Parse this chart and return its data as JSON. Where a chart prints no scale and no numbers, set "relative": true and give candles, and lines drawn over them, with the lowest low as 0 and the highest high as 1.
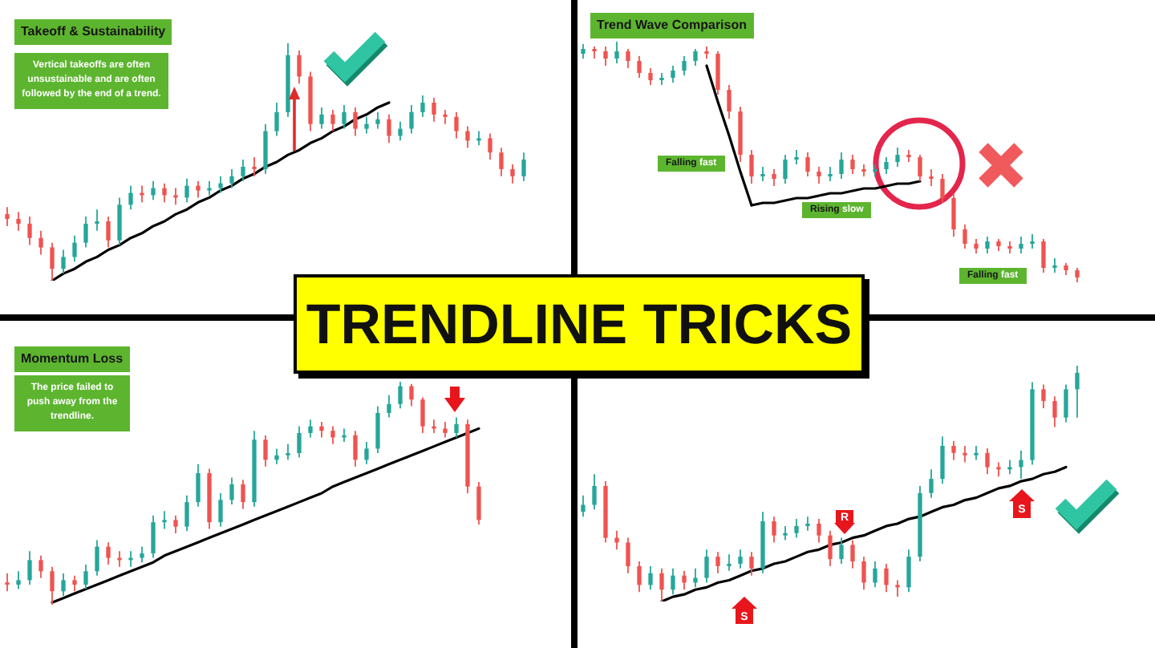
{
  "chart_data": [
    {
      "type": "candlestick",
      "title": "Takeoff & Sustainability",
      "annotations": [
        "Vertical takeoffs are often unsustainable and are often followed by the end of a trend."
      ],
      "relative": true,
      "categories": [
        null,
        null,
        null,
        null,
        null,
        null,
        null,
        null,
        null,
        null,
        null,
        null,
        null,
        null,
        null,
        null,
        null,
        null,
        null,
        null,
        null,
        null,
        null,
        null,
        null,
        null,
        null,
        null,
        null,
        null,
        null,
        null,
        null,
        null,
        null,
        null,
        null,
        null,
        null,
        null,
        null,
        null,
        null,
        null,
        null,
        null,
        null
      ],
      "ohlc": [
        [
          0.28,
          0.31,
          0.23,
          0.26
        ],
        [
          0.26,
          0.29,
          0.21,
          0.24
        ],
        [
          0.24,
          0.27,
          0.15,
          0.18
        ],
        [
          0.18,
          0.21,
          0.11,
          0.14
        ],
        [
          0.14,
          0.16,
          0,
          0.05
        ],
        [
          0.05,
          0.13,
          0.03,
          0.1
        ],
        [
          0.1,
          0.19,
          0.08,
          0.16
        ],
        [
          0.16,
          0.27,
          0.14,
          0.24
        ],
        [
          0.24,
          0.3,
          0.21,
          0.25
        ],
        [
          0.25,
          0.27,
          0.14,
          0.17
        ],
        [
          0.17,
          0.35,
          0.15,
          0.32
        ],
        [
          0.32,
          0.4,
          0.3,
          0.37
        ],
        [
          0.37,
          0.4,
          0.33,
          0.36
        ],
        [
          0.36,
          0.42,
          0.34,
          0.39
        ],
        [
          0.39,
          0.41,
          0.33,
          0.36
        ],
        [
          0.36,
          0.39,
          0.32,
          0.35
        ],
        [
          0.35,
          0.43,
          0.33,
          0.4
        ],
        [
          0.4,
          0.42,
          0.35,
          0.38
        ],
        [
          0.38,
          0.42,
          0.36,
          0.39
        ],
        [
          0.39,
          0.44,
          0.37,
          0.41
        ],
        [
          0.41,
          0.47,
          0.39,
          0.44
        ],
        [
          0.44,
          0.51,
          0.42,
          0.48
        ],
        [
          0.48,
          0.52,
          0.44,
          0.47
        ],
        [
          0.47,
          0.66,
          0.45,
          0.63
        ],
        [
          0.63,
          0.75,
          0.61,
          0.71
        ],
        [
          0.71,
          1,
          0.69,
          0.95
        ],
        [
          0.95,
          0.97,
          0.83,
          0.86
        ],
        [
          0.86,
          0.88,
          0.63,
          0.66
        ],
        [
          0.66,
          0.73,
          0.64,
          0.7
        ],
        [
          0.7,
          0.72,
          0.63,
          0.66
        ],
        [
          0.66,
          0.74,
          0.64,
          0.71
        ],
        [
          0.71,
          0.73,
          0.61,
          0.64
        ],
        [
          0.64,
          0.69,
          0.62,
          0.66
        ],
        [
          0.66,
          0.71,
          0.64,
          0.68
        ],
        [
          0.68,
          0.7,
          0.58,
          0.61
        ],
        [
          0.61,
          0.67,
          0.59,
          0.64
        ],
        [
          0.64,
          0.74,
          0.62,
          0.71
        ],
        [
          0.71,
          0.78,
          0.69,
          0.75
        ],
        [
          0.75,
          0.77,
          0.67,
          0.7
        ],
        [
          0.7,
          0.72,
          0.66,
          0.69
        ],
        [
          0.69,
          0.71,
          0.6,
          0.63
        ],
        [
          0.63,
          0.65,
          0.56,
          0.59
        ],
        [
          0.59,
          0.63,
          0.57,
          0.6
        ],
        [
          0.6,
          0.62,
          0.51,
          0.54
        ],
        [
          0.54,
          0.56,
          0.44,
          0.47
        ],
        [
          0.47,
          0.49,
          0.41,
          0.44
        ],
        [
          0.44,
          0.54,
          0.42,
          0.51
        ]
      ],
      "colors": [
        "#ef5350",
        "#ef5350",
        "#ef5350",
        "#ef5350",
        "#ef5350",
        "#26a69a",
        "#26a69a",
        "#26a69a",
        "#26a69a",
        "#ef5350",
        "#26a69a",
        "#26a69a",
        "#ef5350",
        "#26a69a",
        "#ef5350",
        "#ef5350",
        "#26a69a",
        "#ef5350",
        "#26a69a",
        "#26a69a",
        "#26a69a",
        "#26a69a",
        "#ef5350",
        "#26a69a",
        "#26a69a",
        "#26a69a",
        "#ef5350",
        "#ef5350",
        "#26a69a",
        "#ef5350",
        "#26a69a",
        "#ef5350",
        "#26a69a",
        "#26a69a",
        "#ef5350",
        "#26a69a",
        "#26a69a",
        "#26a69a",
        "#ef5350",
        "#ef5350",
        "#ef5350",
        "#ef5350",
        "#26a69a",
        "#ef5350",
        "#ef5350",
        "#ef5350",
        "#26a69a"
      ],
      "series": [
        {
          "type": "line",
          "color": "#000000",
          "values": [
            null,
            null,
            null,
            null,
            0,
            0.03,
            0.05,
            0.08,
            0.1,
            0.13,
            0.15,
            0.18,
            0.2,
            0.23,
            0.25,
            0.28,
            0.3,
            0.33,
            0.35,
            0.38,
            0.4,
            0.43,
            0.45,
            0.48,
            0.5,
            0.53,
            0.55,
            0.58,
            0.6,
            0.63,
            0.65,
            0.68,
            0.7,
            0.73,
            0.75,
            null,
            null,
            null,
            null,
            null,
            null,
            null,
            null,
            null,
            null,
            null,
            null
          ]
        }
      ]
    },
    {
      "type": "candlestick",
      "title": "Trend Wave Comparison",
      "annotations": [
        "Falling fast",
        "Rising slow",
        "Falling fast"
      ],
      "relative": true,
      "categories": [
        null,
        null,
        null,
        null,
        null,
        null,
        null,
        null,
        null,
        null,
        null,
        null,
        null,
        null,
        null,
        null,
        null,
        null,
        null,
        null,
        null,
        null,
        null,
        null,
        null,
        null,
        null,
        null,
        null,
        null,
        null,
        null,
        null,
        null,
        null,
        null,
        null,
        null,
        null,
        null,
        null,
        null,
        null,
        null,
        null
      ],
      "ohlc": [
        [
          0.95,
          0.99,
          0.93,
          0.97
        ],
        [
          0.97,
          0.98,
          0.93,
          0.96
        ],
        [
          0.96,
          0.98,
          0.9,
          0.93
        ],
        [
          0.93,
          1,
          0.91,
          0.96
        ],
        [
          0.96,
          0.97,
          0.89,
          0.92
        ],
        [
          0.92,
          0.94,
          0.85,
          0.87
        ],
        [
          0.87,
          0.89,
          0.82,
          0.84
        ],
        [
          0.84,
          0.87,
          0.82,
          0.85
        ],
        [
          0.85,
          0.9,
          0.83,
          0.88
        ],
        [
          0.88,
          0.94,
          0.86,
          0.92
        ],
        [
          0.92,
          0.97,
          0.9,
          0.96
        ],
        [
          0.96,
          0.98,
          0.93,
          0.95
        ],
        [
          0.95,
          0.96,
          0.78,
          0.8
        ],
        [
          0.8,
          0.82,
          0.68,
          0.71
        ],
        [
          0.71,
          0.73,
          0.5,
          0.53
        ],
        [
          0.53,
          0.55,
          0.41,
          0.44
        ],
        [
          0.44,
          0.48,
          0.42,
          0.45
        ],
        [
          0.45,
          0.47,
          0.4,
          0.43
        ],
        [
          0.43,
          0.53,
          0.41,
          0.51
        ],
        [
          0.51,
          0.55,
          0.49,
          0.52
        ],
        [
          0.52,
          0.54,
          0.44,
          0.46
        ],
        [
          0.46,
          0.48,
          0.41,
          0.44
        ],
        [
          0.44,
          0.48,
          0.42,
          0.45
        ],
        [
          0.45,
          0.54,
          0.43,
          0.51
        ],
        [
          0.51,
          0.53,
          0.45,
          0.47
        ],
        [
          0.47,
          0.49,
          0.44,
          0.46
        ],
        [
          0.46,
          0.49,
          0.44,
          0.47
        ],
        [
          0.47,
          0.52,
          0.45,
          0.5
        ],
        [
          0.5,
          0.56,
          0.48,
          0.53
        ],
        [
          0.53,
          0.55,
          0.5,
          0.52
        ],
        [
          0.52,
          0.53,
          0.42,
          0.44
        ],
        [
          0.44,
          0.47,
          0.4,
          0.43
        ],
        [
          0.43,
          0.45,
          0.33,
          0.35
        ],
        [
          0.35,
          0.37,
          0.19,
          0.22
        ],
        [
          0.22,
          0.24,
          0.14,
          0.16
        ],
        [
          0.16,
          0.18,
          0.12,
          0.14
        ],
        [
          0.14,
          0.19,
          0.12,
          0.17
        ],
        [
          0.17,
          0.18,
          0.13,
          0.15
        ],
        [
          0.15,
          0.17,
          0.12,
          0.14
        ],
        [
          0.14,
          0.19,
          0.12,
          0.16
        ],
        [
          0.16,
          0.2,
          0.14,
          0.17
        ],
        [
          0.17,
          0.18,
          0.04,
          0.06
        ],
        [
          0.06,
          0.1,
          0.04,
          0.07
        ],
        [
          0.07,
          0.08,
          0.03,
          0.05
        ],
        [
          0.05,
          0.06,
          0,
          0.02
        ]
      ],
      "colors": [
        "#26a69a",
        "#ef5350",
        "#ef5350",
        "#26a69a",
        "#ef5350",
        "#ef5350",
        "#ef5350",
        "#26a69a",
        "#26a69a",
        "#26a69a",
        "#26a69a",
        "#ef5350",
        "#ef5350",
        "#ef5350",
        "#ef5350",
        "#ef5350",
        "#26a69a",
        "#ef5350",
        "#26a69a",
        "#26a69a",
        "#ef5350",
        "#ef5350",
        "#26a69a",
        "#26a69a",
        "#ef5350",
        "#ef5350",
        "#26a69a",
        "#26a69a",
        "#26a69a",
        "#ef5350",
        "#ef5350",
        "#ef5350",
        "#ef5350",
        "#ef5350",
        "#ef5350",
        "#ef5350",
        "#26a69a",
        "#ef5350",
        "#ef5350",
        "#26a69a",
        "#26a69a",
        "#ef5350",
        "#26a69a",
        "#ef5350",
        "#ef5350"
      ],
      "series": [
        {
          "type": "line",
          "color": "#000000",
          "values": [
            null,
            null,
            null,
            null,
            null,
            null,
            null,
            null,
            null,
            null,
            null,
            0.9,
            0.75,
            0.61,
            0.46,
            0.32,
            null,
            null,
            null,
            null,
            null,
            null,
            null,
            null,
            null,
            null,
            null,
            null,
            null,
            null,
            null,
            null,
            null,
            null,
            null,
            null,
            null,
            null,
            null,
            null,
            null,
            null,
            null,
            null,
            null
          ]
        },
        {
          "type": "line",
          "color": "#000000",
          "values": [
            null,
            null,
            null,
            null,
            null,
            null,
            null,
            null,
            null,
            null,
            null,
            null,
            null,
            null,
            null,
            0.32,
            0.33,
            0.33,
            0.34,
            0.35,
            0.35,
            0.36,
            0.37,
            0.37,
            0.38,
            0.39,
            0.39,
            0.4,
            0.41,
            0.41,
            0.42,
            null,
            null,
            null,
            null,
            null,
            null,
            null,
            null,
            null,
            null,
            null,
            null,
            null,
            null
          ]
        }
      ]
    },
    {
      "type": "other",
      "title": "TRENDLINE TRICKS"
    },
    {
      "type": "candlestick",
      "title": "Momentum Loss",
      "annotations": [
        "The price failed to push away from the trendline."
      ],
      "relative": true,
      "categories": [
        null,
        null,
        null,
        null,
        null,
        null,
        null,
        null,
        null,
        null,
        null,
        null,
        null,
        null,
        null,
        null,
        null,
        null,
        null,
        null,
        null,
        null,
        null,
        null,
        null,
        null,
        null,
        null,
        null,
        null,
        null,
        null,
        null,
        null,
        null,
        null,
        null,
        null,
        null,
        null,
        null,
        null,
        null
      ],
      "ohlc": [
        [
          0.1,
          0.14,
          0.06,
          0.09
        ],
        [
          0.09,
          0.15,
          0.07,
          0.11
        ],
        [
          0.11,
          0.24,
          0.09,
          0.2
        ],
        [
          0.2,
          0.22,
          0.12,
          0.15
        ],
        [
          0.15,
          0.17,
          0,
          0.06
        ],
        [
          0.06,
          0.14,
          0.04,
          0.11
        ],
        [
          0.11,
          0.13,
          0.06,
          0.09
        ],
        [
          0.09,
          0.18,
          0.07,
          0.15
        ],
        [
          0.15,
          0.29,
          0.13,
          0.26
        ],
        [
          0.26,
          0.28,
          0.18,
          0.21
        ],
        [
          0.21,
          0.24,
          0.17,
          0.2
        ],
        [
          0.2,
          0.24,
          0.17,
          0.21
        ],
        [
          0.21,
          0.26,
          0.19,
          0.23
        ],
        [
          0.23,
          0.4,
          0.21,
          0.37
        ],
        [
          0.37,
          0.42,
          0.34,
          0.38
        ],
        [
          0.38,
          0.4,
          0.32,
          0.35
        ],
        [
          0.35,
          0.49,
          0.33,
          0.46
        ],
        [
          0.46,
          0.63,
          0.44,
          0.59
        ],
        [
          0.59,
          0.61,
          0.34,
          0.37
        ],
        [
          0.37,
          0.5,
          0.35,
          0.47
        ],
        [
          0.47,
          0.57,
          0.45,
          0.54
        ],
        [
          0.54,
          0.56,
          0.43,
          0.46
        ],
        [
          0.46,
          0.78,
          0.44,
          0.74
        ],
        [
          0.74,
          0.76,
          0.62,
          0.65
        ],
        [
          0.65,
          0.7,
          0.63,
          0.67
        ],
        [
          0.67,
          0.72,
          0.65,
          0.68
        ],
        [
          0.68,
          0.8,
          0.66,
          0.77
        ],
        [
          0.77,
          0.83,
          0.75,
          0.8
        ],
        [
          0.8,
          0.82,
          0.75,
          0.78
        ],
        [
          0.78,
          0.8,
          0.72,
          0.75
        ],
        [
          0.75,
          0.79,
          0.73,
          0.76
        ],
        [
          0.76,
          0.78,
          0.62,
          0.65
        ],
        [
          0.65,
          0.73,
          0.63,
          0.7
        ],
        [
          0.7,
          0.89,
          0.68,
          0.86
        ],
        [
          0.86,
          0.94,
          0.84,
          0.9
        ],
        [
          0.9,
          1,
          0.88,
          0.98
        ],
        [
          0.98,
          0.99,
          0.89,
          0.92
        ],
        [
          0.92,
          0.93,
          0.77,
          0.8
        ],
        [
          0.8,
          0.83,
          0.77,
          0.79
        ],
        [
          0.79,
          0.82,
          0.75,
          0.77
        ],
        [
          0.77,
          0.84,
          0.75,
          0.81
        ],
        [
          0.81,
          0.83,
          0.5,
          0.53
        ],
        [
          0.53,
          0.55,
          0.36,
          0.38
        ]
      ],
      "colors": [
        "#ef5350",
        "#26a69a",
        "#26a69a",
        "#ef5350",
        "#ef5350",
        "#26a69a",
        "#ef5350",
        "#26a69a",
        "#26a69a",
        "#ef5350",
        "#ef5350",
        "#26a69a",
        "#26a69a",
        "#26a69a",
        "#26a69a",
        "#ef5350",
        "#26a69a",
        "#26a69a",
        "#ef5350",
        "#26a69a",
        "#26a69a",
        "#ef5350",
        "#26a69a",
        "#ef5350",
        "#26a69a",
        "#26a69a",
        "#26a69a",
        "#26a69a",
        "#ef5350",
        "#ef5350",
        "#26a69a",
        "#ef5350",
        "#26a69a",
        "#26a69a",
        "#26a69a",
        "#26a69a",
        "#ef5350",
        "#ef5350",
        "#ef5350",
        "#ef5350",
        "#26a69a",
        "#ef5350",
        "#ef5350"
      ],
      "series": [
        {
          "type": "line",
          "color": "#000000",
          "values": [
            null,
            null,
            null,
            null,
            0.01,
            0.03,
            0.05,
            0.07,
            0.09,
            0.11,
            0.13,
            0.15,
            0.17,
            0.19,
            0.22,
            0.24,
            0.26,
            0.28,
            0.3,
            0.32,
            0.34,
            0.36,
            0.38,
            0.4,
            0.42,
            0.44,
            0.46,
            0.48,
            0.5,
            0.53,
            0.55,
            0.57,
            0.59,
            0.61,
            0.63,
            0.65,
            0.67,
            0.69,
            0.71,
            0.73,
            0.75,
            0.77,
            0.79
          ]
        }
      ]
    },
    {
      "type": "candlestick",
      "annotations": [
        "S",
        "R",
        "S"
      ],
      "relative": true,
      "categories": [
        null,
        null,
        null,
        null,
        null,
        null,
        null,
        null,
        null,
        null,
        null,
        null,
        null,
        null,
        null,
        null,
        null,
        null,
        null,
        null,
        null,
        null,
        null,
        null,
        null,
        null,
        null,
        null,
        null,
        null,
        null,
        null,
        null,
        null,
        null,
        null,
        null,
        null,
        null,
        null,
        null,
        null,
        null,
        null,
        null
      ],
      "ohlc": [
        [
          0.38,
          0.45,
          0.36,
          0.41
        ],
        [
          0.41,
          0.54,
          0.39,
          0.49
        ],
        [
          0.49,
          0.51,
          0.25,
          0.27
        ],
        [
          0.27,
          0.3,
          0.22,
          0.25
        ],
        [
          0.25,
          0.27,
          0.12,
          0.15
        ],
        [
          0.15,
          0.17,
          0.04,
          0.07
        ],
        [
          0.07,
          0.15,
          0.05,
          0.12
        ],
        [
          0.12,
          0.14,
          0,
          0.05
        ],
        [
          0.05,
          0.14,
          0.03,
          0.11
        ],
        [
          0.11,
          0.13,
          0.05,
          0.08
        ],
        [
          0.08,
          0.14,
          0.06,
          0.1
        ],
        [
          0.1,
          0.22,
          0.08,
          0.19
        ],
        [
          0.19,
          0.21,
          0.12,
          0.15
        ],
        [
          0.15,
          0.2,
          0.13,
          0.16
        ],
        [
          0.16,
          0.22,
          0.14,
          0.19
        ],
        [
          0.19,
          0.21,
          0.11,
          0.14
        ],
        [
          0.14,
          0.38,
          0.12,
          0.34
        ],
        [
          0.34,
          0.36,
          0.25,
          0.28
        ],
        [
          0.28,
          0.32,
          0.26,
          0.29
        ],
        [
          0.29,
          0.35,
          0.27,
          0.32
        ],
        [
          0.32,
          0.36,
          0.3,
          0.33
        ],
        [
          0.33,
          0.35,
          0.25,
          0.28
        ],
        [
          0.28,
          0.3,
          0.15,
          0.18
        ],
        [
          0.18,
          0.27,
          0.16,
          0.24
        ],
        [
          0.24,
          0.26,
          0.14,
          0.17
        ],
        [
          0.17,
          0.19,
          0.05,
          0.08
        ],
        [
          0.08,
          0.17,
          0.06,
          0.14
        ],
        [
          0.14,
          0.16,
          0.04,
          0.07
        ],
        [
          0.07,
          0.09,
          0.02,
          0.06
        ],
        [
          0.06,
          0.22,
          0.04,
          0.19
        ],
        [
          0.19,
          0.49,
          0.17,
          0.46
        ],
        [
          0.46,
          0.56,
          0.44,
          0.52
        ],
        [
          0.52,
          0.7,
          0.5,
          0.66
        ],
        [
          0.66,
          0.68,
          0.6,
          0.63
        ],
        [
          0.63,
          0.66,
          0.59,
          0.62
        ],
        [
          0.62,
          0.66,
          0.6,
          0.63
        ],
        [
          0.63,
          0.65,
          0.54,
          0.57
        ],
        [
          0.57,
          0.59,
          0.53,
          0.56
        ],
        [
          0.56,
          0.6,
          0.54,
          0.57
        ],
        [
          0.57,
          0.64,
          0.52,
          0.6
        ],
        [
          0.6,
          0.93,
          0.58,
          0.9
        ],
        [
          0.9,
          0.92,
          0.82,
          0.85
        ],
        [
          0.85,
          0.87,
          0.74,
          0.78
        ],
        [
          0.78,
          0.92,
          0.76,
          0.9
        ],
        [
          0.9,
          1,
          0.78,
          0.97
        ]
      ],
      "colors": [
        "#26a69a",
        "#26a69a",
        "#ef5350",
        "#ef5350",
        "#ef5350",
        "#ef5350",
        "#26a69a",
        "#ef5350",
        "#26a69a",
        "#ef5350",
        "#26a69a",
        "#26a69a",
        "#ef5350",
        "#26a69a",
        "#26a69a",
        "#ef5350",
        "#26a69a",
        "#ef5350",
        "#26a69a",
        "#26a69a",
        "#26a69a",
        "#ef5350",
        "#ef5350",
        "#26a69a",
        "#ef5350",
        "#ef5350",
        "#26a69a",
        "#ef5350",
        "#ef5350",
        "#26a69a",
        "#26a69a",
        "#26a69a",
        "#26a69a",
        "#ef5350",
        "#ef5350",
        "#26a69a",
        "#ef5350",
        "#ef5350",
        "#26a69a",
        "#26a69a",
        "#26a69a",
        "#ef5350",
        "#ef5350",
        "#26a69a",
        "#26a69a"
      ],
      "series": [
        {
          "type": "line",
          "color": "#000000",
          "values": [
            null,
            null,
            null,
            null,
            null,
            null,
            null,
            0,
            0.02,
            0.03,
            0.05,
            0.06,
            0.08,
            0.09,
            0.11,
            0.13,
            0.14,
            0.16,
            0.17,
            0.19,
            0.21,
            0.22,
            0.24,
            0.25,
            0.27,
            0.28,
            0.3,
            0.32,
            0.33,
            0.35,
            0.36,
            0.38,
            0.4,
            0.41,
            0.43,
            0.44,
            0.46,
            0.48,
            0.49,
            0.51,
            0.52,
            0.54,
            0.55,
            0.57,
            null
          ]
        }
      ]
    }
  ]
}
